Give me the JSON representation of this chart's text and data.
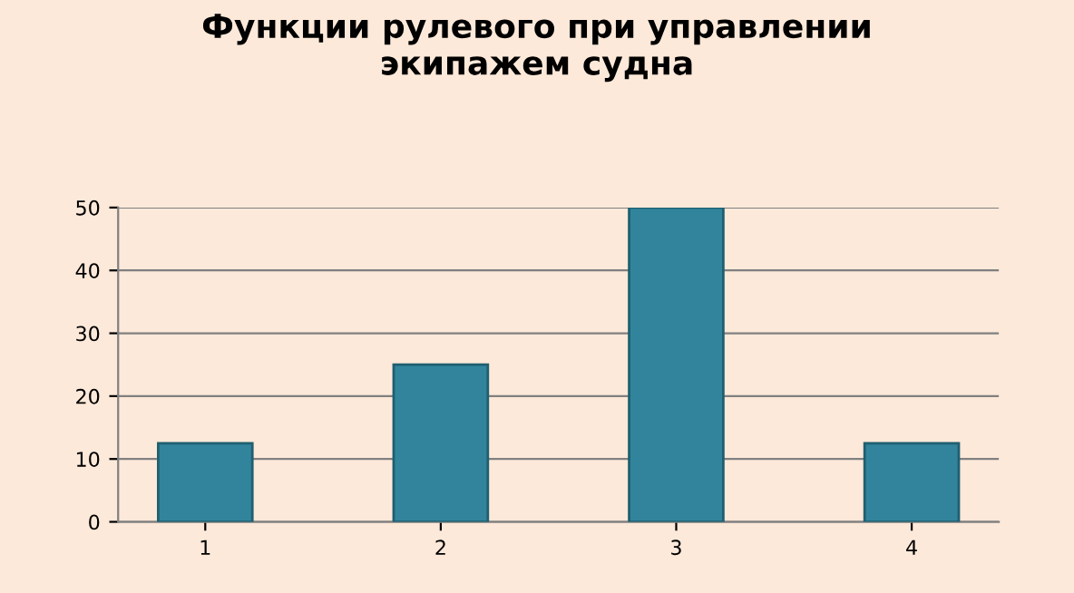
{
  "chart_data": {
    "type": "bar",
    "title": "Функции рулевого при управлении\nэкипажем судна",
    "categories": [
      "1",
      "2",
      "3",
      "4"
    ],
    "values": [
      12.5,
      25,
      50,
      12.5
    ],
    "color": "#31849b",
    "ylim": [
      0,
      50
    ],
    "yticks": [
      0,
      10,
      20,
      30,
      40,
      50
    ],
    "grid": "y"
  }
}
